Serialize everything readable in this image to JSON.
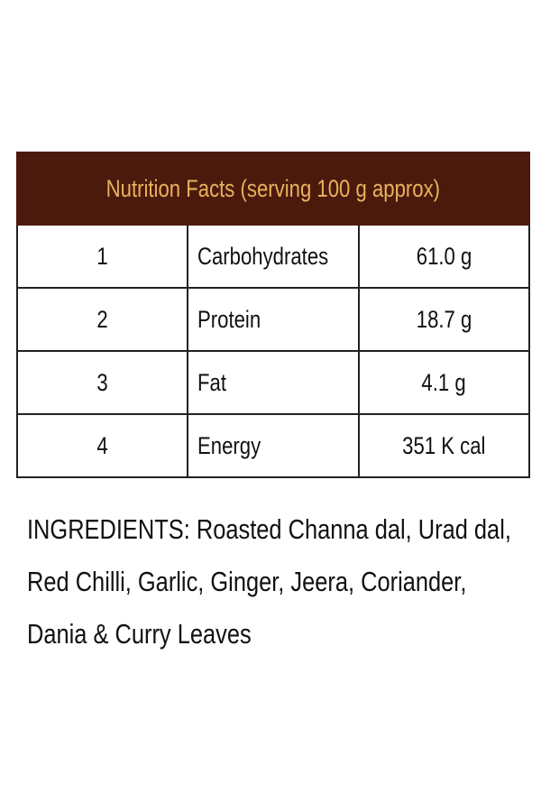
{
  "header": {
    "title": "Nutrition Facts (serving 100 g approx)"
  },
  "table": {
    "rows": [
      [
        "1",
        "Carbohydrates",
        "61.0 g"
      ],
      [
        "2",
        "Protein",
        "18.7 g"
      ],
      [
        "3",
        "Fat",
        "4.1 g"
      ],
      [
        "4",
        "Energy",
        "351 K cal"
      ]
    ]
  },
  "ingredients": {
    "label": "INGREDIENTS:",
    "text": "Roasted Channa dal, Urad dal, Red Chilli, Garlic, Ginger, Jeera, Coriander, Dania & Curry Leaves"
  }
}
